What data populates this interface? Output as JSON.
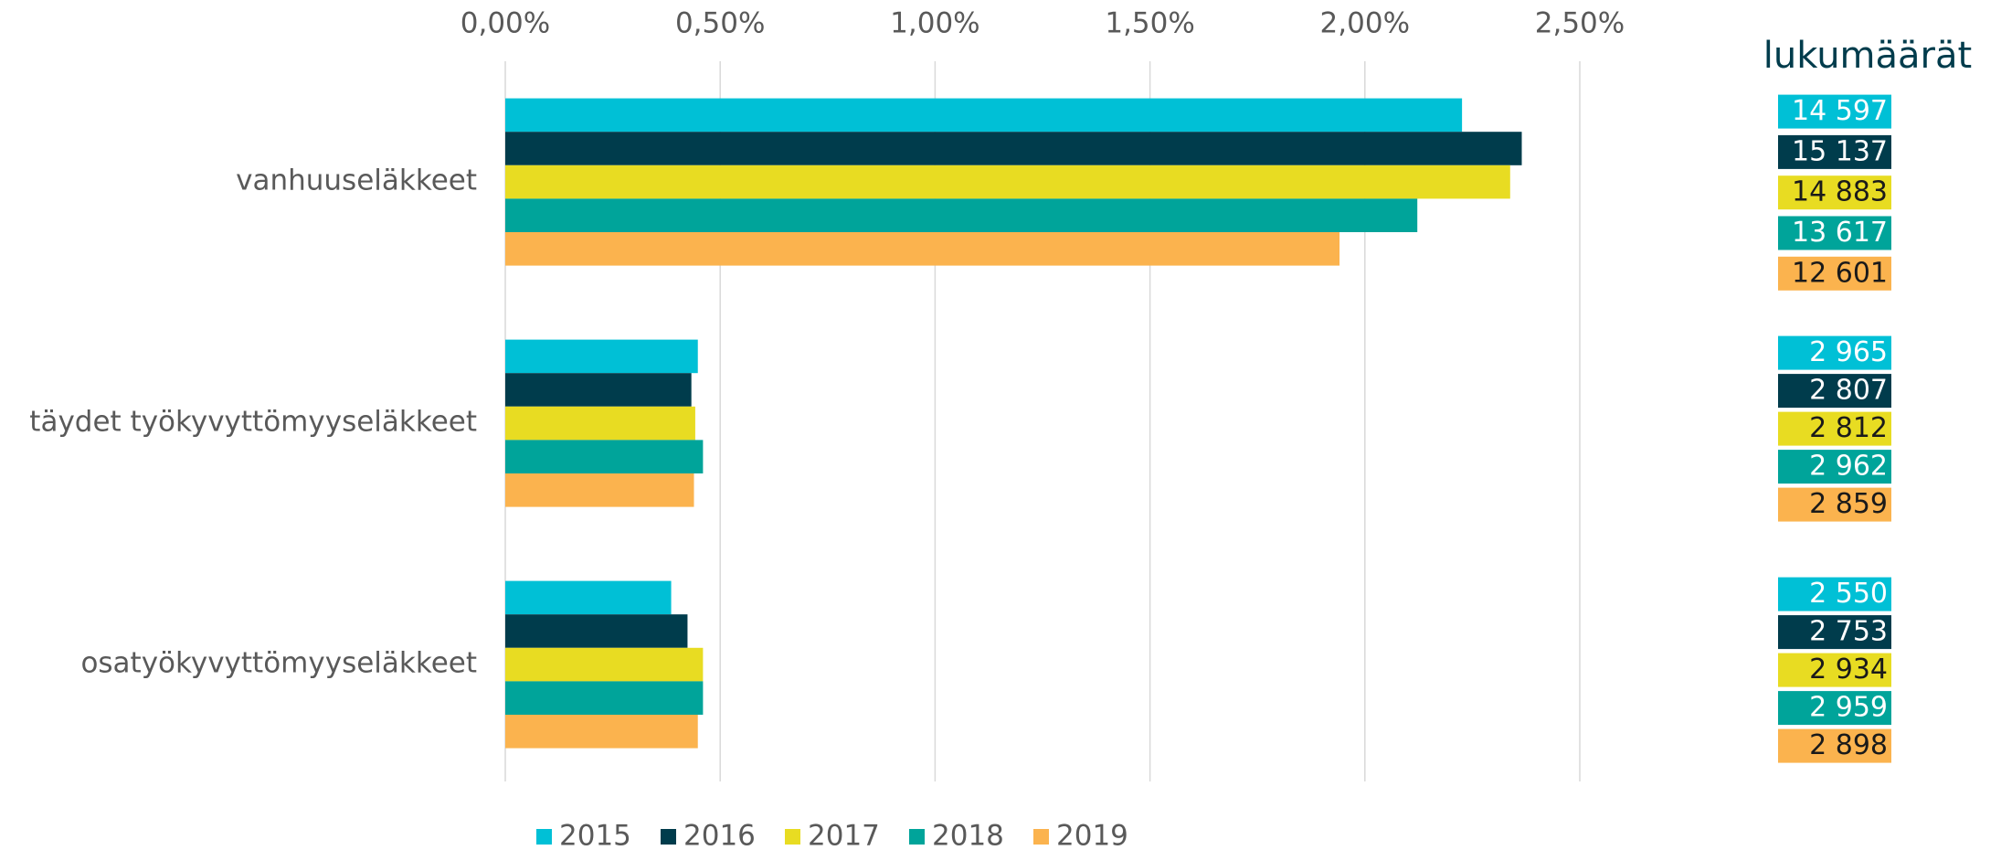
{
  "chart_data": {
    "type": "bar",
    "orientation": "horizontal",
    "categories": [
      "vanhuuseläkkeet",
      "täydet työkyvyttömyyseläkkeet",
      "osatyökyvyttömyyseläkkeet"
    ],
    "series": [
      {
        "name": "2015",
        "color": "#00c0d6",
        "values": [
          2.226,
          0.448,
          0.386
        ],
        "counts": [
          "14 597",
          "2 965",
          "2 550"
        ]
      },
      {
        "name": "2016",
        "color": "#003c4c",
        "values": [
          2.365,
          0.433,
          0.424
        ],
        "counts": [
          "15 137",
          "2 807",
          "2 753"
        ]
      },
      {
        "name": "2017",
        "color": "#e8dc22",
        "values": [
          2.338,
          0.442,
          0.46
        ],
        "counts": [
          "14 883",
          "2 812",
          "2 934"
        ]
      },
      {
        "name": "2018",
        "color": "#00a49a",
        "values": [
          2.122,
          0.46,
          0.46
        ],
        "counts": [
          "13 617",
          "2 962",
          "2 959"
        ]
      },
      {
        "name": "2019",
        "color": "#fbb34e",
        "values": [
          1.941,
          0.439,
          0.448
        ],
        "counts": [
          "12 601",
          "2 859",
          "2 898"
        ]
      }
    ],
    "counts_title": "lukumäärät",
    "xlim": [
      0,
      2.5
    ],
    "xticks": [
      {
        "value": 0,
        "label": "0,00%"
      },
      {
        "value": 0.5,
        "label": "0,50%"
      },
      {
        "value": 1,
        "label": "1,00%"
      },
      {
        "value": 1.5,
        "label": "1,50%"
      },
      {
        "value": 2,
        "label": "2,00%"
      },
      {
        "value": 2.5,
        "label": "2,50%"
      }
    ],
    "grid": true,
    "legend": "bottom"
  }
}
